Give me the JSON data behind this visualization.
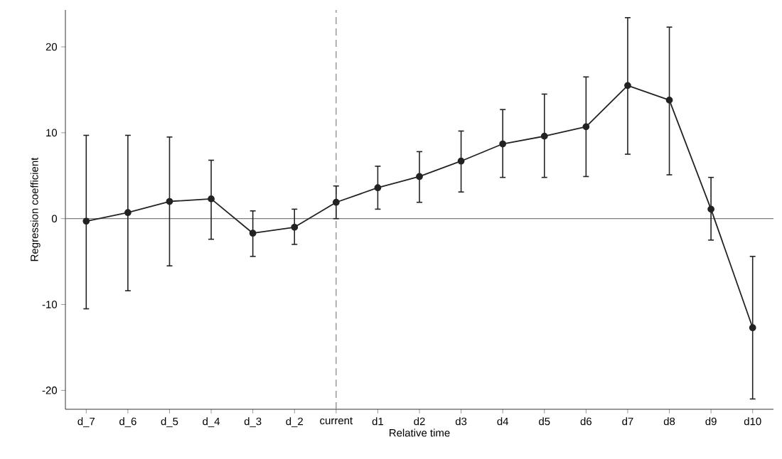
{
  "chart_data": {
    "type": "line",
    "xlabel": "Relative time",
    "ylabel": "Regression coefficient",
    "categories": [
      "d_7",
      "d_6",
      "d_5",
      "d_4",
      "d_3",
      "d_2",
      "current",
      "d1",
      "d2",
      "d3",
      "d4",
      "d5",
      "d6",
      "d7",
      "d8",
      "d9",
      "d10"
    ],
    "series": [
      {
        "color": "#222222",
        "values": [
          -0.3,
          0.7,
          2.0,
          2.3,
          -1.7,
          -1.0,
          1.9,
          3.6,
          4.9,
          6.7,
          8.7,
          9.6,
          10.7,
          15.5,
          13.8,
          1.1,
          -12.7
        ],
        "errors": [
          [
            -10.5,
            9.7
          ],
          [
            -8.4,
            9.7
          ],
          [
            -5.5,
            9.5
          ],
          [
            -2.4,
            6.8
          ],
          [
            -4.4,
            0.9
          ],
          [
            -3.0,
            1.1
          ],
          [
            0.0,
            3.8
          ],
          [
            1.1,
            6.1
          ],
          [
            1.9,
            7.8
          ],
          [
            3.1,
            10.2
          ],
          [
            4.8,
            12.7
          ],
          [
            4.8,
            14.5
          ],
          [
            4.9,
            16.5
          ],
          [
            7.5,
            23.4
          ],
          [
            5.1,
            22.3
          ],
          [
            -2.5,
            4.8
          ],
          [
            -21.0,
            -4.4
          ]
        ]
      }
    ],
    "ylim": [
      -22.2,
      24.3
    ],
    "yticks": [
      -20,
      -10,
      0,
      10,
      20
    ],
    "ref_lines": [
      {
        "axis": "y",
        "value": 0,
        "color": "#808080",
        "line_style": "solid"
      },
      {
        "axis": "x",
        "value": "current",
        "color": "#808080",
        "line_style": "dashed"
      }
    ],
    "marker": "circle",
    "line_style": "solid"
  }
}
